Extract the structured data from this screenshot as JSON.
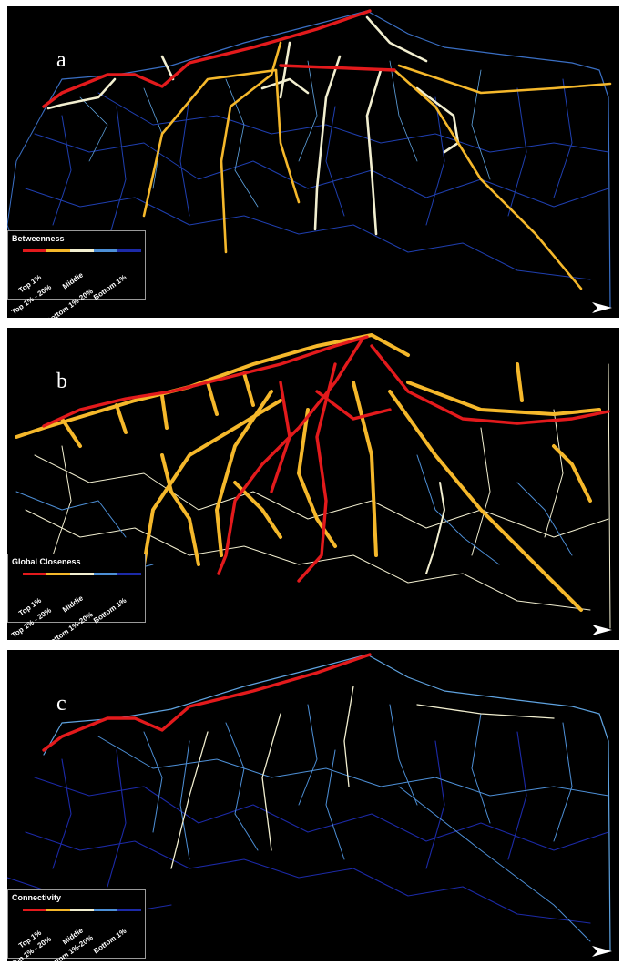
{
  "panels": [
    {
      "letter": "a",
      "legend": {
        "title": "Betweenness",
        "classes": [
          "Top 1%",
          "Top 1% - 20%",
          "Middle",
          "Bottom 1%-20%",
          "Bottom 1%"
        ]
      }
    },
    {
      "letter": "b",
      "legend": {
        "title": "Global Closeness",
        "classes": [
          "Top 1%",
          "Top 1% - 20%",
          "Middle",
          "Bottom 1%-20%",
          "Bottom 1%"
        ]
      }
    },
    {
      "letter": "c",
      "legend": {
        "title": "Connectivity",
        "classes": [
          "Top 1%",
          "Top 1% - 20%",
          "Middle",
          "Bottom 1%-20%",
          "Bottom 1%"
        ]
      }
    }
  ],
  "colors": {
    "top_1": "#e31a1c",
    "top_1_20": "#f5b82b",
    "middle": "#f2efd0",
    "bottom_1_20": "#4d8fd6",
    "bottom_1": "#1c2aa8",
    "background": "#000000"
  },
  "icons": {
    "north_arrow": "north-arrow-icon"
  }
}
